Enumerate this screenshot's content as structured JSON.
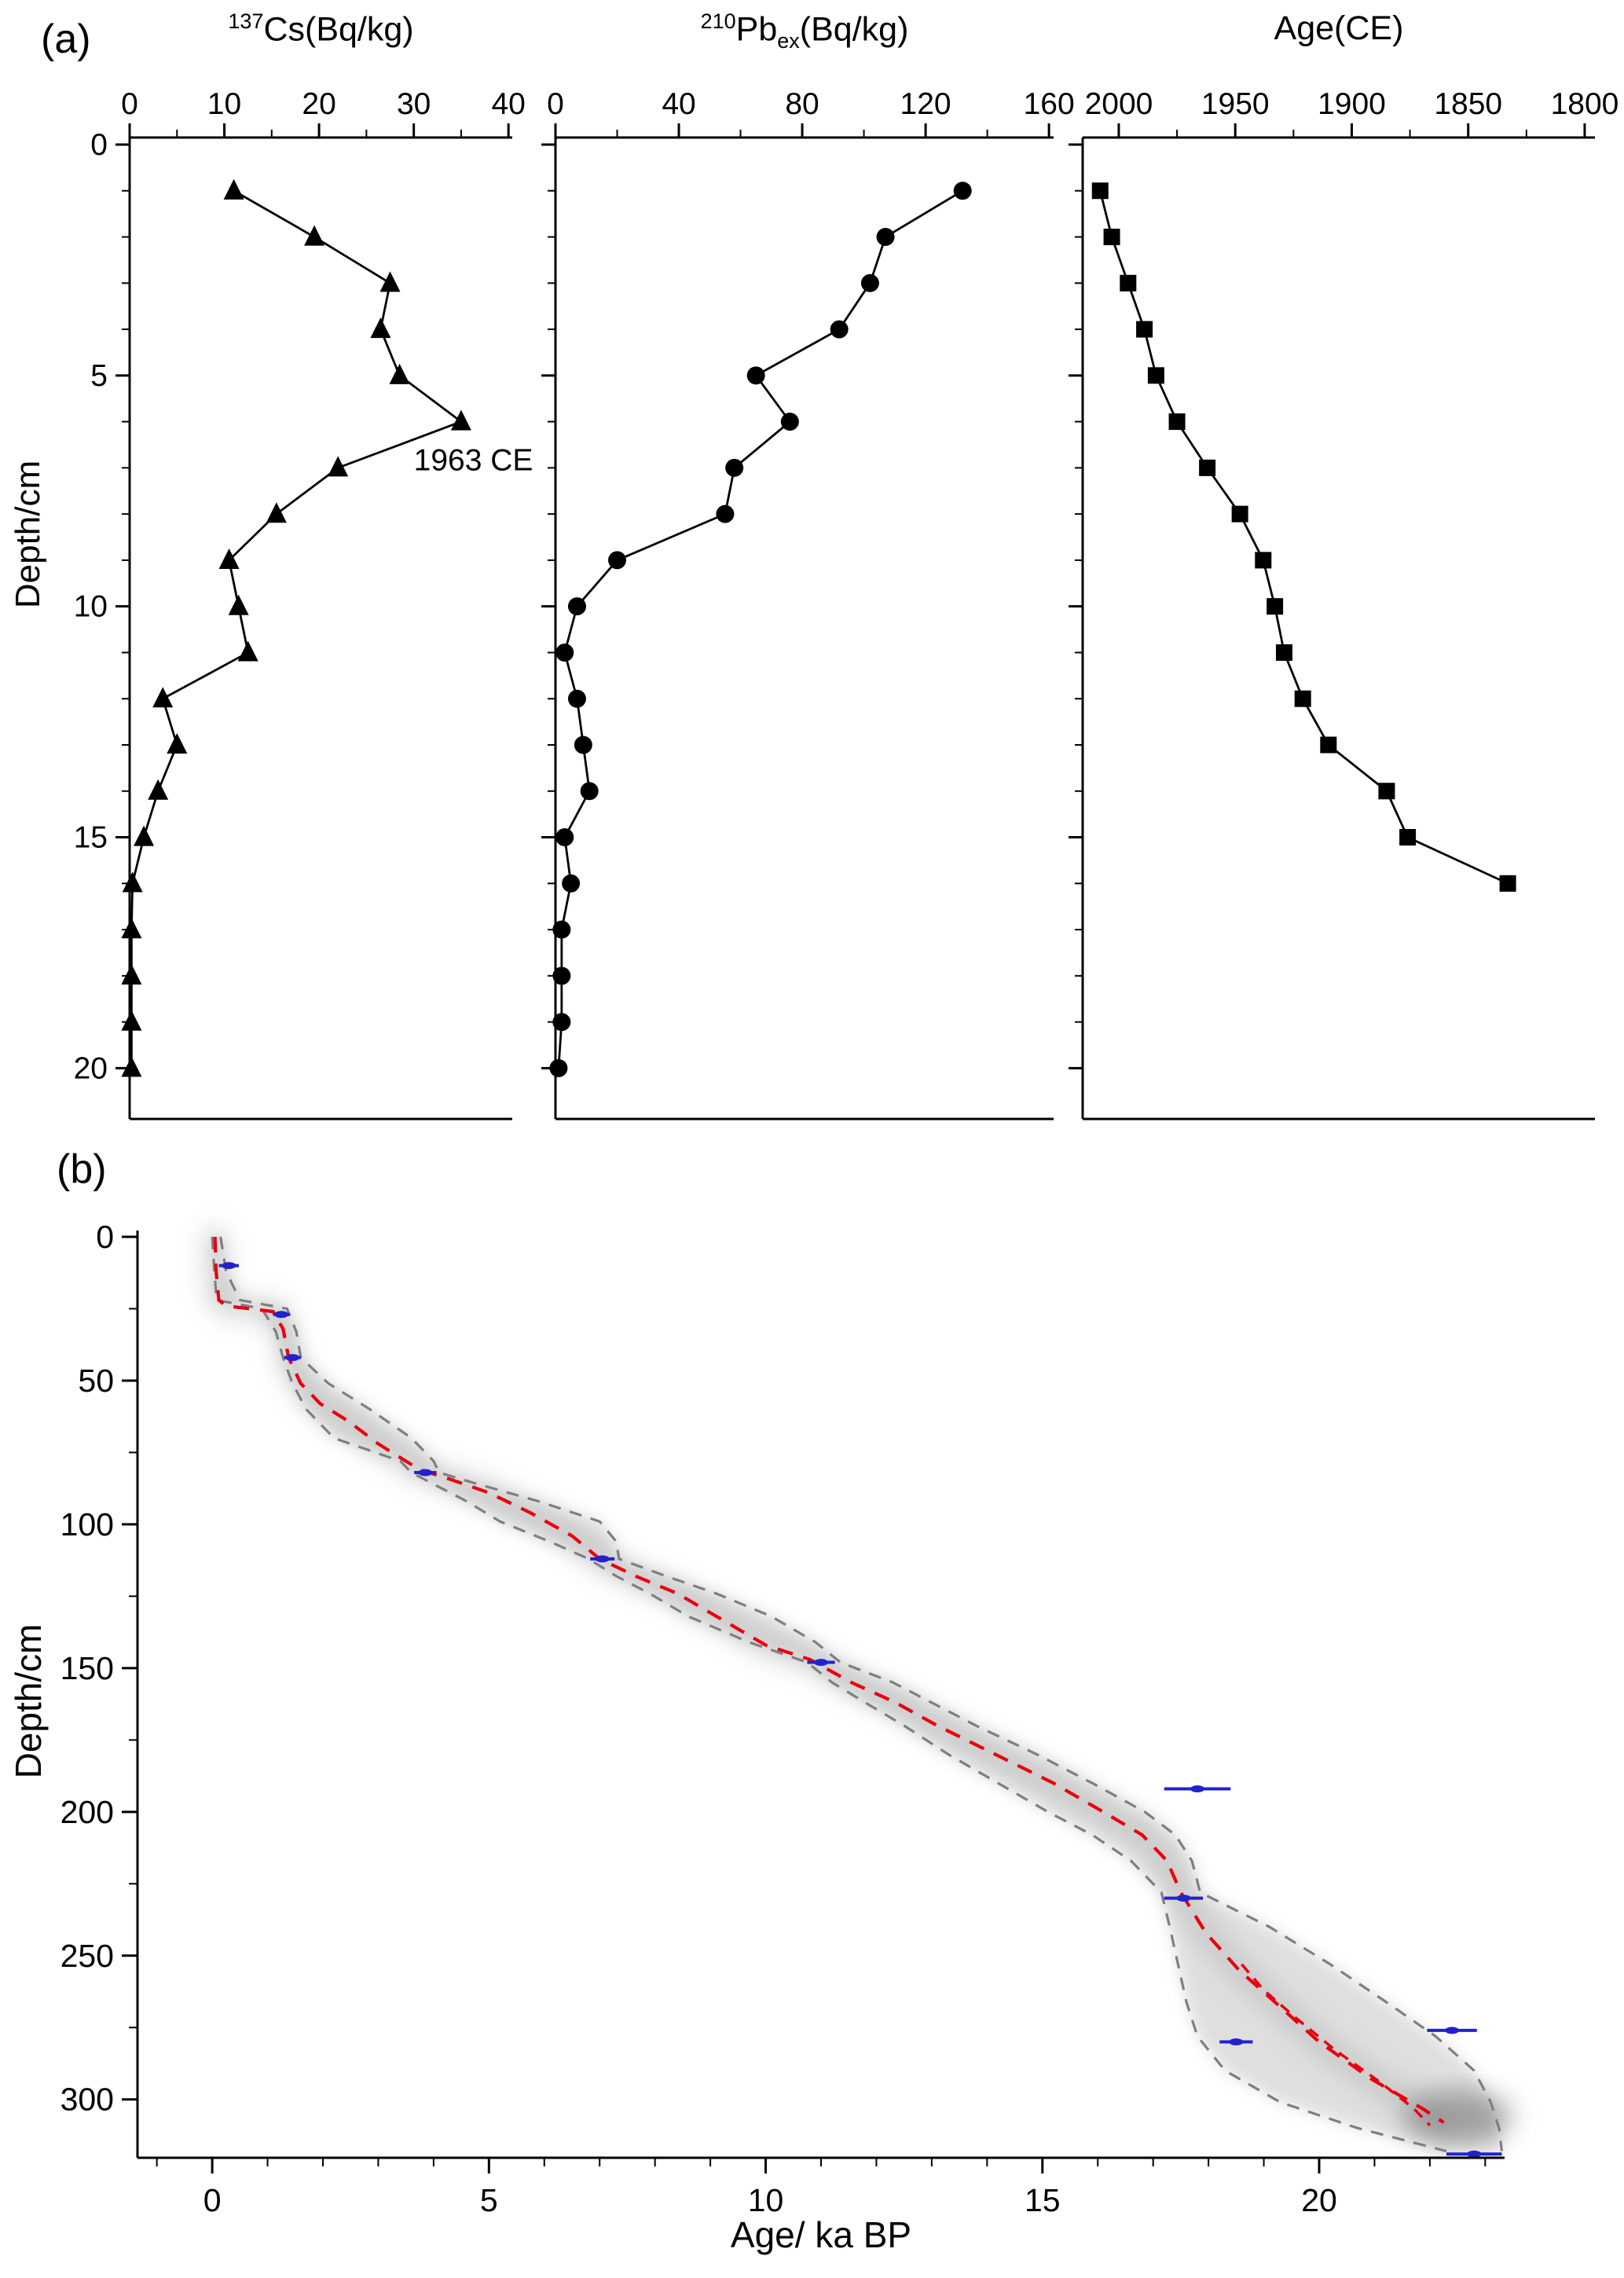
{
  "panels": {
    "a": {
      "label": "(a)"
    },
    "b": {
      "label": "(b)"
    }
  },
  "chart_data": [
    {
      "id": "cs137",
      "type": "line",
      "marker": "triangle-up",
      "title": {
        "sup": "137",
        "main": "Cs(Bq/kg)"
      },
      "ylabel": "Depth/cm",
      "x_axis": {
        "position": "top",
        "lim": [
          0,
          40.4
        ],
        "ticks": [
          0,
          10,
          20,
          30,
          40
        ],
        "minor_step": 5
      },
      "y_axis": {
        "lim": [
          0,
          21.1
        ],
        "ticks": [
          0,
          5,
          10,
          15,
          20
        ],
        "minor_step": 1
      },
      "depth": [
        1,
        2,
        3,
        4,
        5,
        6,
        7,
        8,
        9,
        10,
        11,
        12,
        13,
        14,
        15,
        16,
        17,
        18,
        19,
        20
      ],
      "values": [
        11,
        19.5,
        27.5,
        26.5,
        28.5,
        35,
        22,
        15.5,
        10.5,
        11.5,
        12.5,
        3.5,
        5,
        3,
        1.5,
        0.3,
        0.2,
        0.2,
        0.2,
        0.2
      ],
      "annotation": {
        "text": "1963 CE",
        "x": 30,
        "depth": 7.05
      }
    },
    {
      "id": "pb210ex",
      "type": "line",
      "marker": "circle",
      "title": {
        "sup": "210",
        "main": "Pb",
        "sub": "ex",
        "rest": "(Bq/kg)"
      },
      "x_axis": {
        "position": "top",
        "lim": [
          0,
          161.5
        ],
        "ticks": [
          0,
          40,
          80,
          120,
          160
        ],
        "minor_step": 20
      },
      "depth": [
        1,
        2,
        3,
        4,
        5,
        6,
        7,
        8,
        9,
        10,
        11,
        12,
        13,
        14,
        15,
        16,
        17,
        18,
        19,
        20
      ],
      "values": [
        132,
        107,
        102,
        92,
        65,
        76,
        58,
        55,
        20,
        7,
        3,
        7,
        9,
        11,
        3,
        5,
        2,
        2,
        2,
        1
      ]
    },
    {
      "id": "age-ce",
      "type": "line",
      "marker": "square",
      "title": {
        "main": "Age(CE)"
      },
      "x_axis": {
        "position": "top",
        "lim": [
          2015.5,
          1795.6
        ],
        "ticks": [
          2000,
          1950,
          1900,
          1850,
          1800
        ],
        "minor_step": 25
      },
      "depth": [
        1,
        2,
        3,
        4,
        5,
        6,
        7,
        8,
        9,
        10,
        11,
        12,
        13,
        14,
        15,
        16
      ],
      "values": [
        2008,
        2003,
        1996,
        1989,
        1984,
        1975,
        1962,
        1948,
        1938,
        1933,
        1929,
        1921,
        1910,
        1885,
        1876,
        1833
      ]
    },
    {
      "id": "age-depth-model",
      "type": "line",
      "subtype": "age-depth-model",
      "xlabel": "Age/ ka BP",
      "ylabel": "Depth/cm",
      "x_axis": {
        "lim": [
          -1.35,
          23.35
        ],
        "ticks": [
          0,
          5,
          10,
          15,
          20
        ],
        "minor_step": 1
      },
      "y_axis": {
        "lim": [
          0,
          320.3
        ],
        "ticks": [
          0,
          50,
          100,
          150,
          200,
          250,
          300
        ],
        "minor_step": 25
      },
      "median_age_depth": [
        [
          0.05,
          0
        ],
        [
          0.07,
          12
        ],
        [
          0.12,
          22
        ],
        [
          0.25,
          24
        ],
        [
          1.1,
          26
        ],
        [
          1.28,
          32
        ],
        [
          1.38,
          42
        ],
        [
          1.6,
          51
        ],
        [
          1.95,
          58
        ],
        [
          2.45,
          64
        ],
        [
          3.0,
          72
        ],
        [
          3.75,
          81
        ],
        [
          4.25,
          84
        ],
        [
          5.0,
          89
        ],
        [
          5.75,
          96
        ],
        [
          6.5,
          104
        ],
        [
          7.0,
          112
        ],
        [
          7.65,
          118
        ],
        [
          8.4,
          124
        ],
        [
          9.2,
          133
        ],
        [
          10.0,
          142
        ],
        [
          10.8,
          147
        ],
        [
          11.55,
          155
        ],
        [
          12.35,
          162
        ],
        [
          13.1,
          170
        ],
        [
          14.15,
          180
        ],
        [
          15.2,
          190
        ],
        [
          16.1,
          200
        ],
        [
          16.8,
          208
        ],
        [
          17.25,
          217
        ],
        [
          17.5,
          228
        ],
        [
          17.95,
          242
        ],
        [
          18.55,
          255
        ],
        [
          19.25,
          267
        ],
        [
          20.0,
          280
        ],
        [
          20.95,
          293
        ],
        [
          21.85,
          303
        ],
        [
          22.25,
          308
        ]
      ],
      "median_branch2": [
        [
          18.6,
          253
        ],
        [
          19.0,
          262
        ],
        [
          19.6,
          272
        ],
        [
          20.3,
          283
        ],
        [
          21.1,
          294
        ],
        [
          21.7,
          303
        ],
        [
          22.0,
          309
        ]
      ],
      "envelope_min_age": [
        [
          0.0,
          0
        ],
        [
          0.04,
          12
        ],
        [
          0.08,
          22
        ],
        [
          0.9,
          25
        ],
        [
          1.15,
          33
        ],
        [
          1.28,
          42
        ],
        [
          1.45,
          51
        ],
        [
          1.7,
          60
        ],
        [
          2.2,
          70
        ],
        [
          3.4,
          78
        ],
        [
          3.6,
          82
        ],
        [
          4.0,
          86
        ],
        [
          4.6,
          92
        ],
        [
          5.2,
          99
        ],
        [
          6.1,
          106
        ],
        [
          6.8,
          112
        ],
        [
          7.3,
          118
        ],
        [
          7.9,
          124
        ],
        [
          8.6,
          132
        ],
        [
          9.7,
          141
        ],
        [
          10.75,
          148
        ],
        [
          11.2,
          155
        ],
        [
          11.8,
          162
        ],
        [
          12.5,
          170
        ],
        [
          13.3,
          180
        ],
        [
          14.2,
          190
        ],
        [
          15.1,
          200
        ],
        [
          15.9,
          208
        ],
        [
          16.6,
          217
        ],
        [
          17.15,
          228
        ],
        [
          17.3,
          240
        ],
        [
          17.45,
          253
        ],
        [
          17.6,
          266
        ],
        [
          17.8,
          278
        ],
        [
          18.3,
          290
        ],
        [
          19.3,
          301
        ],
        [
          20.7,
          310
        ],
        [
          22.3,
          318
        ]
      ],
      "envelope_max_age": [
        [
          0.15,
          0
        ],
        [
          0.25,
          12
        ],
        [
          0.5,
          22
        ],
        [
          1.35,
          25
        ],
        [
          1.52,
          33
        ],
        [
          1.6,
          42
        ],
        [
          2.1,
          51
        ],
        [
          2.85,
          60
        ],
        [
          3.6,
          70
        ],
        [
          4.0,
          78
        ],
        [
          4.1,
          82
        ],
        [
          4.8,
          86
        ],
        [
          5.9,
          92
        ],
        [
          7.0,
          99
        ],
        [
          7.3,
          106
        ],
        [
          7.35,
          112
        ],
        [
          8.2,
          118
        ],
        [
          9.1,
          124
        ],
        [
          10.1,
          132
        ],
        [
          10.9,
          141
        ],
        [
          11.35,
          148
        ],
        [
          12.3,
          155
        ],
        [
          13.0,
          162
        ],
        [
          13.8,
          170
        ],
        [
          14.9,
          180
        ],
        [
          15.9,
          190
        ],
        [
          16.85,
          200
        ],
        [
          17.4,
          208
        ],
        [
          17.7,
          217
        ],
        [
          17.85,
          228
        ],
        [
          19.1,
          240
        ],
        [
          20.2,
          253
        ],
        [
          21.2,
          266
        ],
        [
          22.1,
          278
        ],
        [
          22.8,
          290
        ],
        [
          23.1,
          301
        ],
        [
          23.25,
          310
        ],
        [
          23.3,
          318
        ]
      ],
      "dated_levels": [
        {
          "age": 0.3,
          "depth": 10,
          "err": 0.18
        },
        {
          "age": 1.25,
          "depth": 27,
          "err": 0.15
        },
        {
          "age": 1.45,
          "depth": 42,
          "err": 0.15
        },
        {
          "age": 3.85,
          "depth": 82,
          "err": 0.2
        },
        {
          "age": 7.05,
          "depth": 112,
          "err": 0.22
        },
        {
          "age": 11.0,
          "depth": 148,
          "err": 0.25
        },
        {
          "age": 17.8,
          "depth": 192,
          "err": 0.6
        },
        {
          "age": 17.55,
          "depth": 230,
          "err": 0.35
        },
        {
          "age": 18.5,
          "depth": 280,
          "err": 0.3
        },
        {
          "age": 22.4,
          "depth": 276,
          "err": 0.45
        },
        {
          "age": 22.8,
          "depth": 319,
          "err": 0.5
        }
      ],
      "density_hotspot": {
        "age": 22.5,
        "depth": 306
      },
      "colors": {
        "median": "#e8000d",
        "envelope": "#7f7f7f",
        "dates": "#2222cc",
        "cloud": "#c0c0c0"
      }
    }
  ]
}
